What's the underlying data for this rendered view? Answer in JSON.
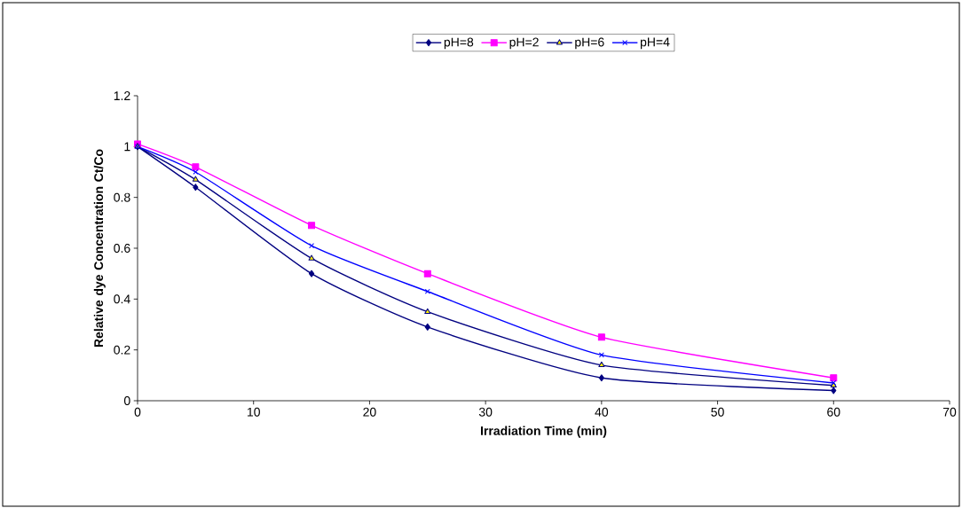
{
  "chart_data": {
    "type": "line",
    "xlabel": "Irradiation Time (min)",
    "ylabel": "Relative dye Concentration Ct/Co",
    "x": [
      0,
      5,
      15,
      25,
      40,
      60
    ],
    "series": [
      {
        "name": "pH=8",
        "color": "#000080",
        "marker": "diamond",
        "values": [
          1.0,
          0.84,
          0.5,
          0.29,
          0.09,
          0.04
        ]
      },
      {
        "name": "pH=2",
        "color": "#ff00ff",
        "marker": "square",
        "values": [
          1.01,
          0.92,
          0.69,
          0.5,
          0.25,
          0.09
        ]
      },
      {
        "name": "pH=6",
        "color": "#000080",
        "marker": "triangle",
        "values": [
          1.0,
          0.87,
          0.56,
          0.35,
          0.14,
          0.06
        ]
      },
      {
        "name": "pH=4",
        "color": "#0000ff",
        "marker": "cross",
        "values": [
          1.0,
          0.9,
          0.61,
          0.43,
          0.18,
          0.07
        ]
      }
    ],
    "xlim": [
      0,
      70
    ],
    "ylim": [
      0,
      1.2
    ],
    "xticks": [
      0,
      10,
      20,
      30,
      40,
      50,
      60,
      70
    ],
    "yticks": [
      0,
      0.2,
      0.4,
      0.6,
      0.8,
      1,
      1.2
    ],
    "legend": "top",
    "grid": false
  }
}
